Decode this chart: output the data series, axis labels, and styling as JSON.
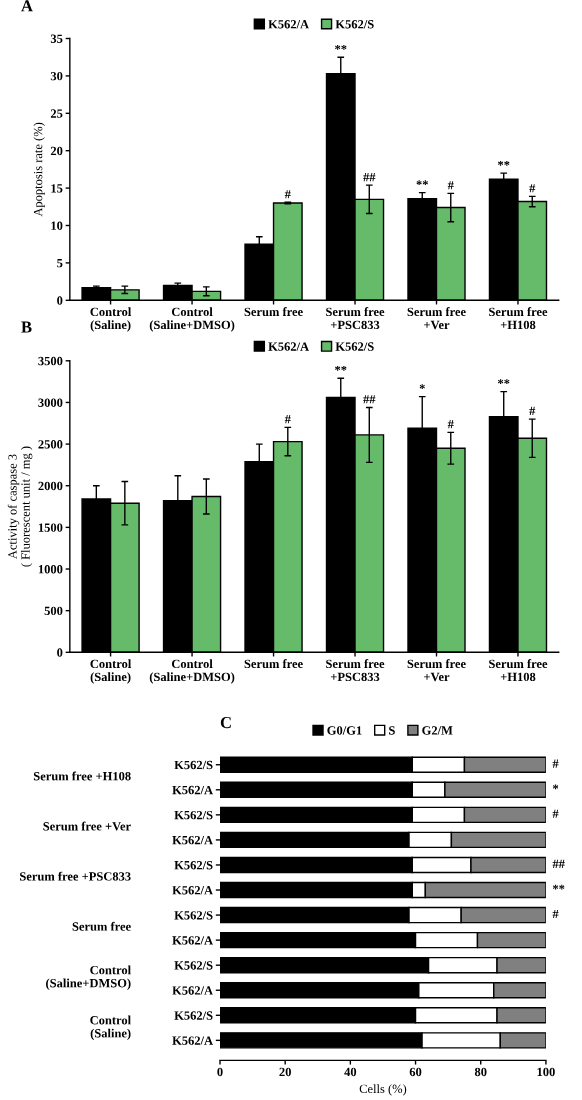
{
  "chart_data": [
    {
      "type": "bar",
      "title": "A",
      "ylabel": "Apoptosis rate (%)",
      "categories": [
        "Control\n(Saline)",
        "Control\n(Saline+DMSO)",
        "Serum free",
        "Serum free\n+PSC833",
        "Serum free\n+Ver",
        "Serum free\n+H108"
      ],
      "ylim": [
        0,
        35
      ],
      "yticks": [
        0,
        5,
        10,
        15,
        20,
        25,
        30,
        35
      ],
      "grid": false,
      "legend": "top",
      "series": [
        {
          "name": "K562/A",
          "color": "#000000",
          "values": [
            1.7,
            2.0,
            7.5,
            30.3,
            13.6,
            16.2
          ],
          "errors": [
            0.2,
            0.3,
            1.0,
            2.2,
            0.8,
            0.8
          ],
          "value_labels": [
            null,
            null,
            null,
            "**",
            "**",
            "**"
          ]
        },
        {
          "name": "K562/S",
          "color": "#66bb6a",
          "values": [
            1.4,
            1.2,
            13.0,
            13.5,
            12.4,
            13.2
          ],
          "errors": [
            0.5,
            0.6,
            0.1,
            1.9,
            1.9,
            0.7
          ],
          "value_labels": [
            null,
            null,
            "#",
            "##",
            "#",
            "#"
          ]
        }
      ]
    },
    {
      "type": "bar",
      "title": "B",
      "ylabel": "Activity of caspase 3\n( Fluorescent unit / mg )",
      "categories": [
        "Control\n(Saline)",
        "Control\n(Saline+DMSO)",
        "Serum free",
        "Serum free\n+PSC833",
        "Serum free\n+Ver",
        "Serum free\n+H108"
      ],
      "ylim": [
        0,
        3500
      ],
      "yticks": [
        0,
        500,
        1000,
        1500,
        2000,
        2500,
        3000,
        3500
      ],
      "grid": false,
      "legend": "top",
      "series": [
        {
          "name": "K562/A",
          "color": "#000000",
          "values": [
            1840,
            1820,
            2290,
            3060,
            2690,
            2830
          ],
          "errors": [
            160,
            300,
            210,
            230,
            380,
            300
          ],
          "value_labels": [
            null,
            null,
            null,
            "**",
            "*",
            "**"
          ]
        },
        {
          "name": "K562/S",
          "color": "#66bb6a",
          "values": [
            1790,
            1870,
            2530,
            2610,
            2450,
            2570
          ],
          "errors": [
            260,
            210,
            170,
            330,
            190,
            230
          ],
          "value_labels": [
            null,
            null,
            "#",
            "##",
            "#",
            "#"
          ]
        }
      ]
    },
    {
      "type": "bar",
      "title": "C",
      "orientation": "horizontal",
      "stacked": true,
      "xlabel": "Cells (%)",
      "categories": [
        "K562/S",
        "K562/A",
        "K562/S",
        "K562/A",
        "K562/S",
        "K562/A",
        "K562/S",
        "K562/A",
        "K562/S",
        "K562/A",
        "K562/S",
        "K562/A"
      ],
      "xlim": [
        0,
        100
      ],
      "xticks": [
        0,
        20,
        40,
        60,
        80,
        100
      ],
      "grid": false,
      "legend": "top",
      "annotations": [
        "Serum free +H108",
        "Serum free +Ver",
        "Serum free +PSC833",
        "Serum free",
        "Control\n(Saline+DMSO)",
        "Control\n(Saline)"
      ],
      "series": [
        {
          "name": "G0/G1",
          "color": "#000000",
          "values": [
            59,
            59,
            59,
            58,
            59,
            59,
            58,
            60,
            64,
            61,
            60,
            62
          ]
        },
        {
          "name": "S",
          "color": "#ffffff",
          "values": [
            16,
            10,
            16,
            13,
            18,
            4,
            16,
            19,
            21,
            23,
            25,
            24
          ]
        },
        {
          "name": "G2/M",
          "color": "#808080",
          "values": [
            25,
            31,
            25,
            29,
            23,
            37,
            26,
            21,
            15,
            16,
            15,
            14
          ],
          "value_labels": [
            "#",
            "*",
            "#",
            null,
            "##",
            "**",
            "#",
            null,
            null,
            null,
            null,
            null
          ]
        }
      ]
    }
  ]
}
